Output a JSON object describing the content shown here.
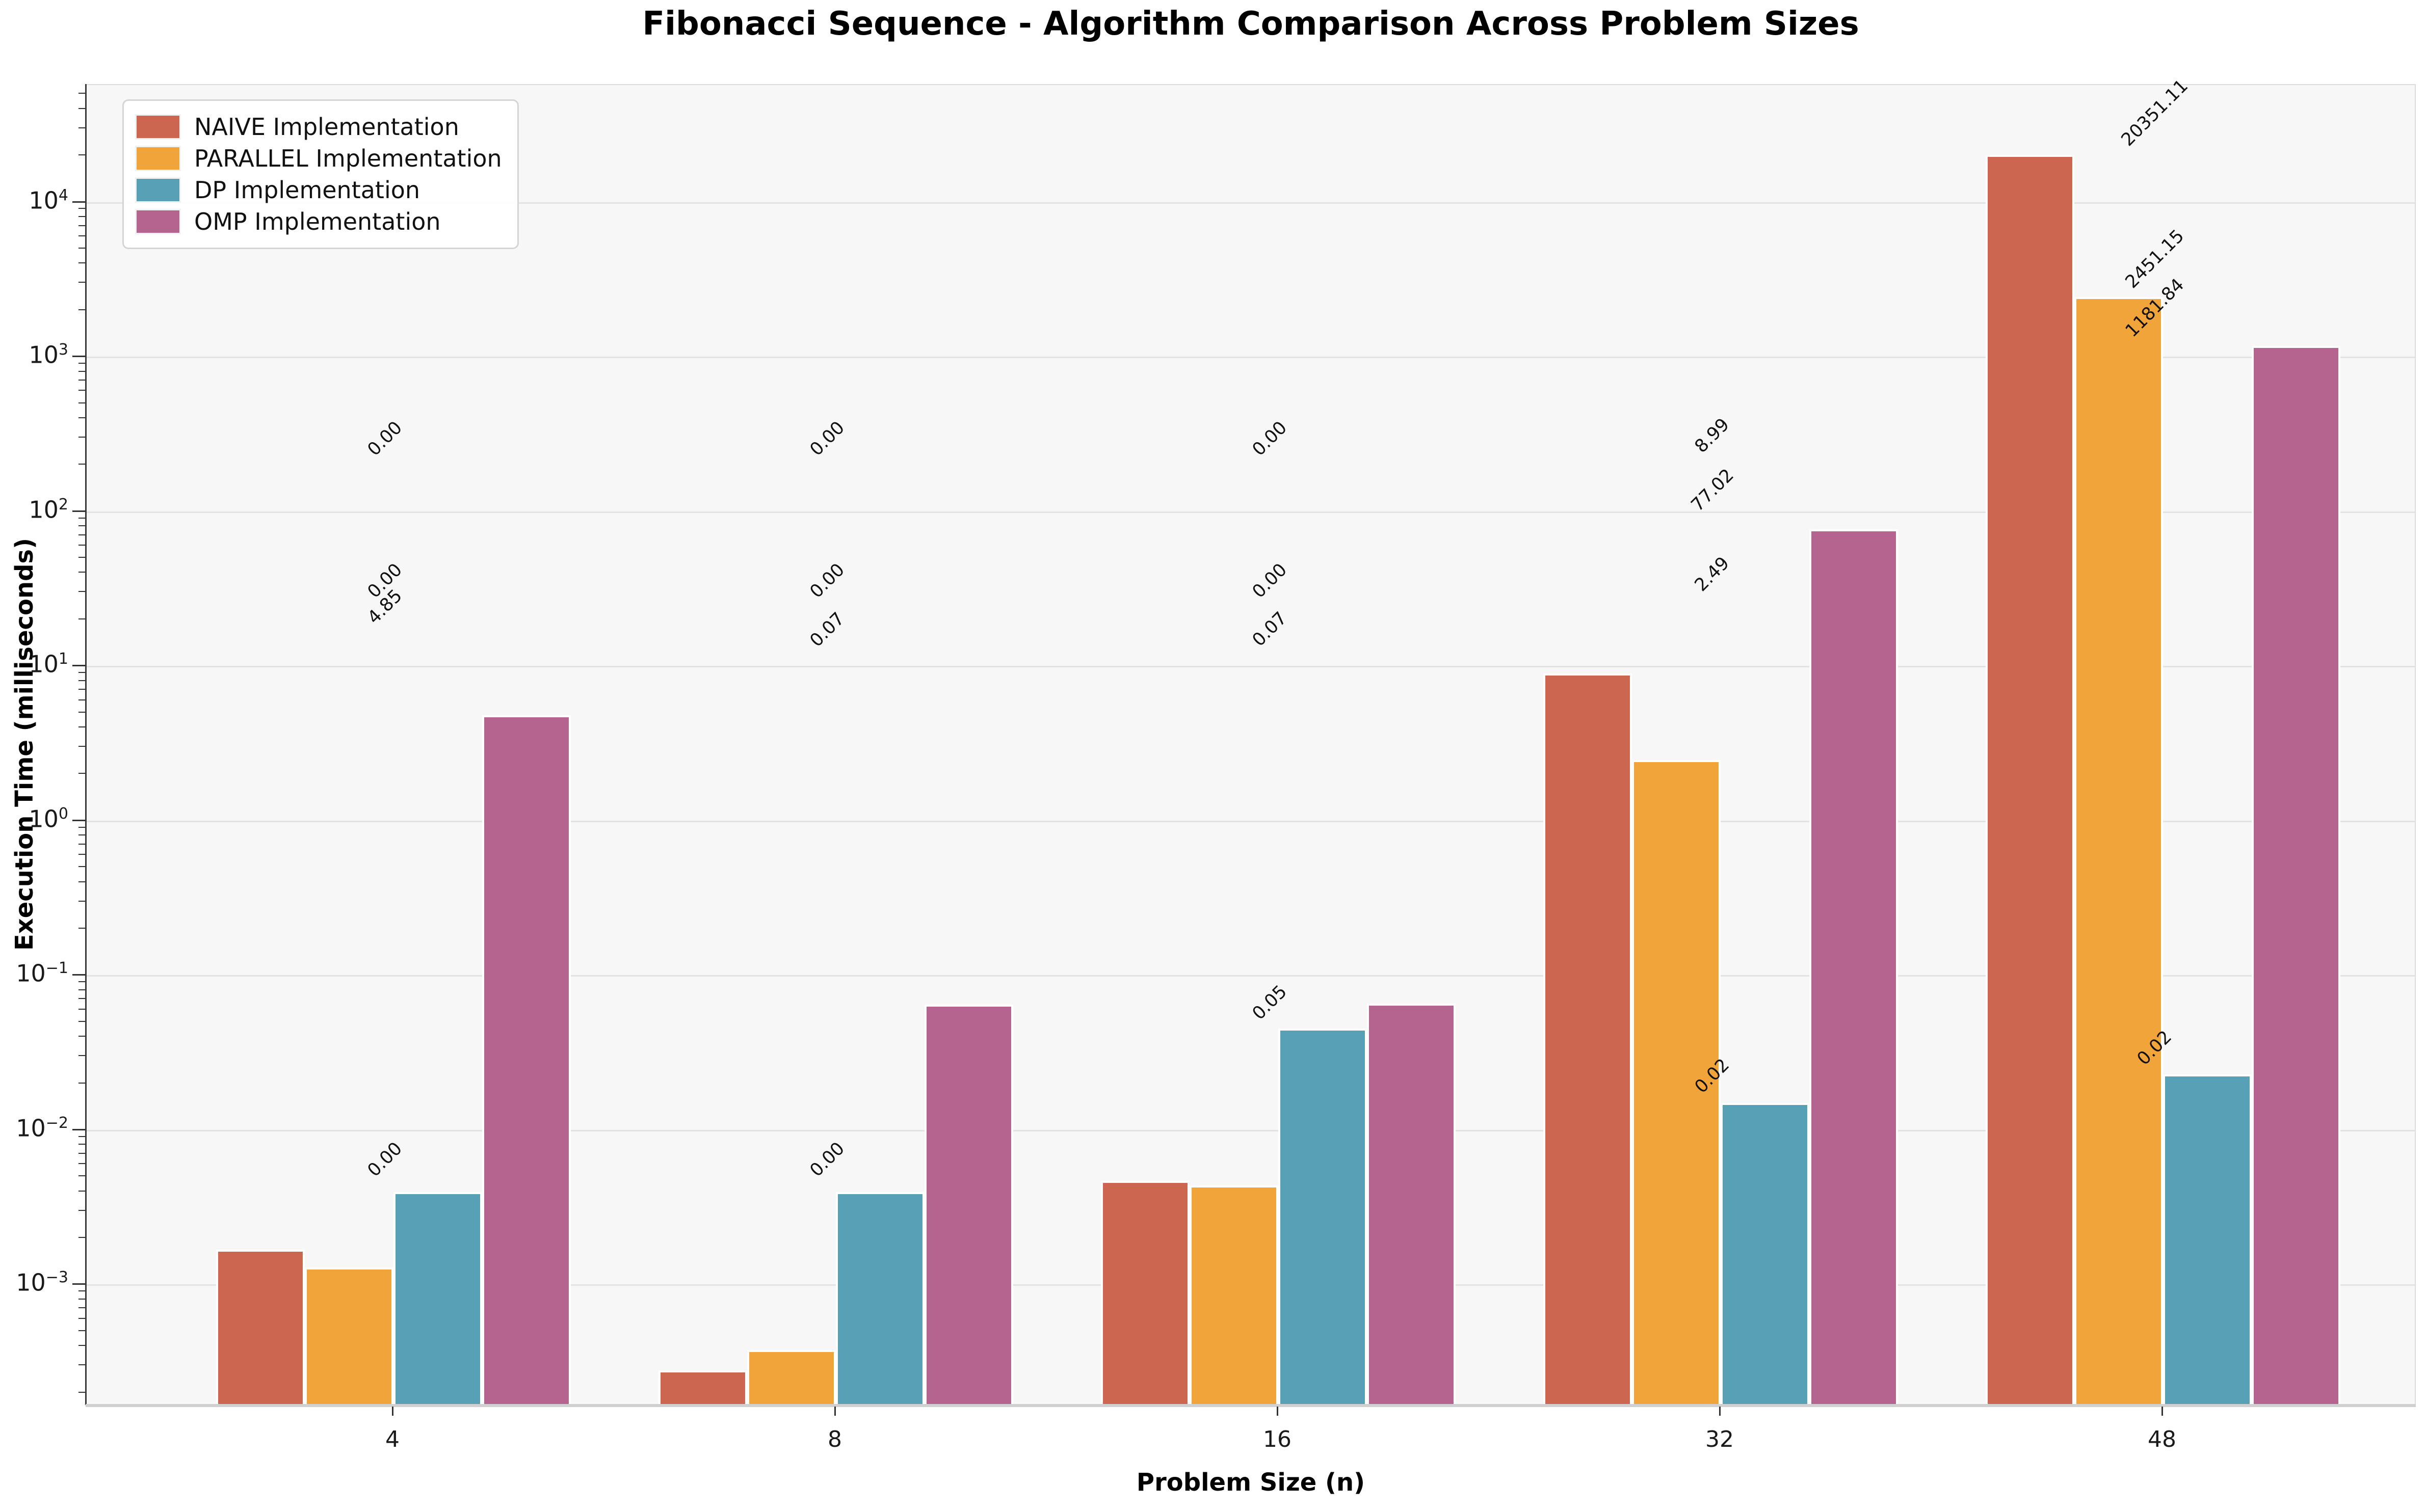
{
  "chart_data": {
    "type": "bar",
    "title": "Fibonacci Sequence - Algorithm Comparison Across Problem Sizes",
    "xlabel": "Problem Size (n)",
    "ylabel": "Execution Time (milliseconds)",
    "yscale": "log",
    "grid": "horizontal-major",
    "legend_position": "upper-left",
    "categories": [
      "4",
      "8",
      "16",
      "32",
      "48"
    ],
    "series": [
      {
        "name": "NAIVE Implementation",
        "color": "#CC6650",
        "values": [
          0.0017,
          0.00028,
          0.0047,
          8.99,
          20351.11
        ],
        "bar_labels": [
          "0.00",
          "0.00",
          "0.00",
          "8.99",
          "20351.11"
        ]
      },
      {
        "name": "PARALLEL Implementation",
        "color": "#F0A43A",
        "values": [
          0.0013,
          0.00038,
          0.0044,
          2.49,
          2451.15
        ],
        "bar_labels": [
          "0.00",
          "0.00",
          "0.00",
          "2.49",
          "2451.15"
        ]
      },
      {
        "name": "DP Implementation",
        "color": "#58A0B6",
        "values": [
          0.004,
          0.004,
          0.0455,
          0.015,
          0.023
        ],
        "bar_labels": [
          "0.00",
          "0.00",
          "0.05",
          "0.02",
          "0.02"
        ]
      },
      {
        "name": "OMP Implementation",
        "color": "#B5638F",
        "values": [
          4.85,
          0.065,
          0.066,
          77.02,
          1181.84
        ],
        "bar_labels": [
          "4.85",
          "0.07",
          "0.07",
          "77.02",
          "1181.84"
        ]
      }
    ],
    "ylim": [
      0.000165,
      57500
    ],
    "ytick_exponents": [
      4,
      3,
      2,
      1,
      0,
      -1,
      -2,
      -3
    ],
    "bar_label_offset_fraction_of_series_max": 0.01,
    "colors": {
      "figure_background": "#ffffff",
      "axes_background": "#f7f7f7",
      "grid": "#e3e3e3",
      "spine_bottom": "#d0d0d0",
      "spine_left": "#3a3a3a",
      "tick": "#333333",
      "text": "#111111",
      "legend_border": "#d5d5d5"
    }
  }
}
